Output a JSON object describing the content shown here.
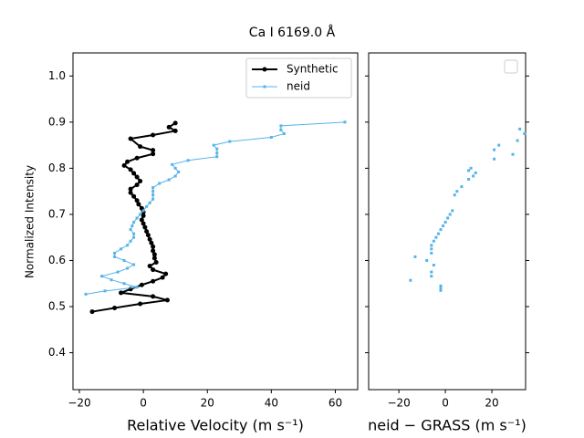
{
  "chart_data": [
    {
      "type": "line",
      "title": "Ca I 6169.0 Å",
      "xlabel": "Relative Velocity (m s⁻¹)",
      "ylabel": "Normalized Intensity",
      "xlim": [
        -22,
        67
      ],
      "ylim": [
        0.32,
        1.05
      ],
      "xticks": [
        -20,
        0,
        20,
        40,
        60
      ],
      "yticks": [
        0.4,
        0.5,
        0.6,
        0.7,
        0.8,
        0.9,
        1.0
      ],
      "legend": "upper right",
      "series": [
        {
          "name": "Synthetic",
          "color": "#000000",
          "marker": "circle",
          "x": [
            -16,
            -9,
            -1,
            7.5,
            3,
            -7,
            -4,
            -0.5,
            3,
            6,
            7,
            3,
            2,
            4,
            3.5,
            3.5,
            3,
            3,
            2.5,
            2,
            1.5,
            1,
            0.5,
            0,
            -0.5,
            0,
            0,
            -0.5,
            -1.5,
            -2,
            -3,
            -4,
            -4,
            -2,
            -1,
            -2,
            -3,
            -4,
            -6,
            -5,
            -2,
            3,
            3,
            -1,
            -4,
            3,
            10,
            8,
            10
          ],
          "values": [
            0.489,
            0.497,
            0.506,
            0.514,
            0.522,
            0.53,
            0.538,
            0.547,
            0.555,
            0.563,
            0.571,
            0.58,
            0.588,
            0.596,
            0.605,
            0.613,
            0.621,
            0.63,
            0.638,
            0.646,
            0.655,
            0.663,
            0.672,
            0.68,
            0.688,
            0.697,
            0.705,
            0.713,
            0.722,
            0.73,
            0.739,
            0.747,
            0.755,
            0.764,
            0.772,
            0.781,
            0.789,
            0.797,
            0.806,
            0.814,
            0.822,
            0.831,
            0.839,
            0.847,
            0.864,
            0.872,
            0.881,
            0.889,
            0.898
          ]
        },
        {
          "name": "neid",
          "color": "#56b4e9",
          "marker": "square",
          "x": [
            -18,
            -12,
            -2,
            -6,
            -10,
            -13,
            -8,
            -5,
            -3,
            -6,
            -9,
            -9,
            -7,
            -5,
            -4,
            -3,
            -3,
            -4,
            -3.5,
            -3,
            -2,
            -1,
            0,
            1,
            2,
            3,
            3,
            3,
            3,
            5,
            8,
            10,
            11,
            10,
            9,
            14,
            23,
            23,
            23,
            22,
            27,
            40,
            44,
            43,
            43,
            63
          ],
          "values": [
            0.527,
            0.534,
            0.542,
            0.55,
            0.558,
            0.566,
            0.575,
            0.583,
            0.591,
            0.6,
            0.608,
            0.616,
            0.625,
            0.633,
            0.642,
            0.65,
            0.658,
            0.667,
            0.675,
            0.683,
            0.692,
            0.7,
            0.708,
            0.717,
            0.725,
            0.733,
            0.742,
            0.75,
            0.758,
            0.767,
            0.775,
            0.783,
            0.792,
            0.8,
            0.808,
            0.817,
            0.825,
            0.833,
            0.842,
            0.85,
            0.858,
            0.867,
            0.875,
            0.883,
            0.892,
            0.9
          ]
        }
      ]
    },
    {
      "type": "scatter",
      "xlabel": "neid − GRASS (m s⁻¹)",
      "xlim": [
        -33,
        34.5
      ],
      "ylim": [
        0.32,
        1.05
      ],
      "xticks": [
        -20,
        0,
        20
      ],
      "yticks": [
        0.4,
        0.5,
        0.6,
        0.7,
        0.8,
        0.9,
        1.0
      ],
      "series": [
        {
          "color": "#56b4e9",
          "x": [
            -2,
            -2,
            -2,
            -15,
            -6,
            -6,
            -5,
            -13,
            -8,
            -6,
            -6,
            -6,
            -5,
            -4,
            -3,
            -2,
            -1,
            0,
            1,
            2,
            3,
            4,
            5,
            7,
            10,
            12,
            10,
            11,
            13,
            21,
            21,
            23,
            29,
            31,
            34,
            32
          ],
          "values": [
            0.535,
            0.54,
            0.545,
            0.557,
            0.566,
            0.575,
            0.59,
            0.608,
            0.6,
            0.616,
            0.625,
            0.633,
            0.642,
            0.65,
            0.658,
            0.667,
            0.675,
            0.683,
            0.692,
            0.7,
            0.708,
            0.742,
            0.75,
            0.76,
            0.776,
            0.783,
            0.795,
            0.8,
            0.79,
            0.82,
            0.84,
            0.85,
            0.83,
            0.86,
            0.875,
            0.885
          ]
        }
      ]
    }
  ]
}
